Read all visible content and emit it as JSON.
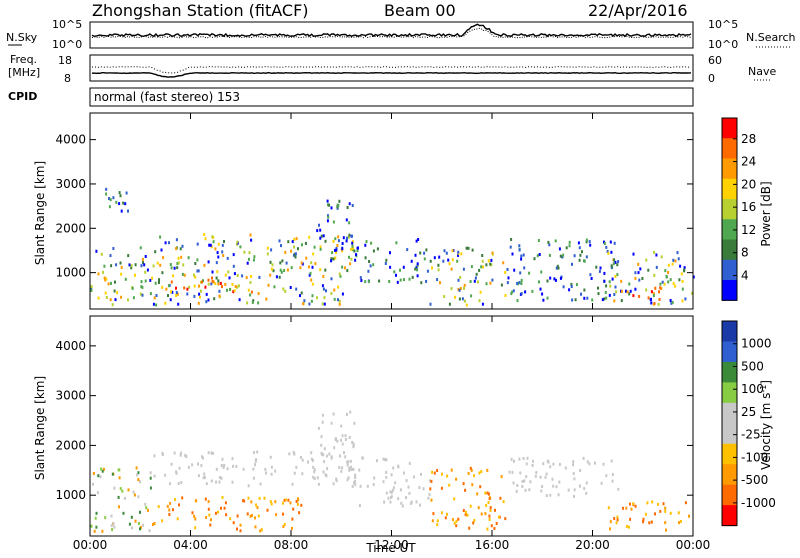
{
  "header": {
    "station": "Zhongshan Station (fitACF)",
    "beam": "Beam 00",
    "date": "22/Apr/2016"
  },
  "summary_panels": {
    "nsky_label": "N.Sky",
    "nsearch_label": "N.Search",
    "nsky_ticks": [
      "10^5",
      "10^0"
    ],
    "nsearch_ticks": [
      "10^5",
      "10^0"
    ],
    "freq_label_1": "Freq.",
    "freq_label_2": "[MHz]",
    "freq_ticks": [
      "18",
      "8"
    ],
    "nave_label": "Nave",
    "nave_ticks": [
      "60",
      "0"
    ],
    "cpid_label": "CPID",
    "cpid_text": "normal (fast stereo) 153"
  },
  "colors": {
    "power_scale": [
      "#0000ff",
      "#2f5fd0",
      "#3a7a3a",
      "#4fa84f",
      "#b8d030",
      "#ffd200",
      "#ff9a00",
      "#ff6a00",
      "#ff0000"
    ],
    "velocity_scale": [
      "#ff0000",
      "#ff6a00",
      "#ff9a00",
      "#ffc000",
      "#c8c8c8",
      "#c8c8c8",
      "#88cc44",
      "#3a8a3a",
      "#2f5fd0",
      "#1a3aa8"
    ],
    "ground_scatter": "#c8c8c8"
  },
  "chart_data": [
    {
      "type": "heatmap",
      "name": "power",
      "ylabel": "Slant Range [km]",
      "xlabel": "",
      "ylim": [
        180,
        4600
      ],
      "xlim": [
        0,
        24
      ],
      "x_ticks": [
        "00:00",
        "04:00",
        "08:00",
        "12:00",
        "16:00",
        "20:00",
        "00:00"
      ],
      "y_ticks": [
        1000,
        2000,
        3000,
        4000
      ],
      "colorbar": {
        "label": "Power [dB]",
        "ticks": [
          "28",
          "24",
          "20",
          "16",
          "12",
          "8",
          "4"
        ],
        "range": [
          0,
          30
        ]
      },
      "echo_regions": [
        {
          "t": [
            0.0,
            2.5
          ],
          "r": [
            300,
            1600
          ],
          "level": "mixed"
        },
        {
          "t": [
            0.3,
            1.5
          ],
          "r": [
            2400,
            3100
          ],
          "level": "low"
        },
        {
          "t": [
            2.5,
            10.5
          ],
          "r": [
            300,
            1900
          ],
          "level": "mixed"
        },
        {
          "t": [
            3.0,
            6.5
          ],
          "r": [
            500,
            1000
          ],
          "level": "high"
        },
        {
          "t": [
            9.0,
            10.5
          ],
          "r": [
            1200,
            2700
          ],
          "level": "low"
        },
        {
          "t": [
            10.5,
            13.5
          ],
          "r": [
            800,
            1800
          ],
          "level": "low"
        },
        {
          "t": [
            13.5,
            16.5
          ],
          "r": [
            300,
            1600
          ],
          "level": "mixed"
        },
        {
          "t": [
            16.5,
            21.0
          ],
          "r": [
            400,
            1800
          ],
          "level": "low"
        },
        {
          "t": [
            20.5,
            24.0
          ],
          "r": [
            300,
            1500
          ],
          "level": "mixed"
        },
        {
          "t": [
            21.5,
            23.0
          ],
          "r": [
            300,
            700
          ],
          "level": "high"
        }
      ]
    },
    {
      "type": "heatmap",
      "name": "velocity",
      "ylabel": "Slant Range [km]",
      "xlabel": "Time UT",
      "ylim": [
        180,
        4600
      ],
      "xlim": [
        0,
        24
      ],
      "x_ticks": [
        "00:00",
        "04:00",
        "08:00",
        "12:00",
        "16:00",
        "20:00",
        "00:00"
      ],
      "y_ticks": [
        1000,
        2000,
        3000,
        4000
      ],
      "colorbar": {
        "label": "Velocity [m s^-1]",
        "ticks": [
          "1000",
          "500",
          "100",
          "25",
          "-25",
          "-100",
          "-500",
          "-1000"
        ]
      },
      "echo_regions": [
        {
          "t": [
            0.0,
            2.5
          ],
          "r": [
            300,
            1600
          ],
          "level": "mixed"
        },
        {
          "t": [
            2.5,
            10.5
          ],
          "r": [
            1200,
            1900
          ],
          "level": "ground"
        },
        {
          "t": [
            2.5,
            8.5
          ],
          "r": [
            300,
            1000
          ],
          "level": "away"
        },
        {
          "t": [
            9.0,
            10.5
          ],
          "r": [
            1200,
            2700
          ],
          "level": "ground"
        },
        {
          "t": [
            10.5,
            13.5
          ],
          "r": [
            800,
            1800
          ],
          "level": "ground"
        },
        {
          "t": [
            13.5,
            16.5
          ],
          "r": [
            300,
            1600
          ],
          "level": "away"
        },
        {
          "t": [
            16.5,
            21.0
          ],
          "r": [
            1000,
            1800
          ],
          "level": "ground"
        },
        {
          "t": [
            20.5,
            24.0
          ],
          "r": [
            300,
            900
          ],
          "level": "away"
        }
      ]
    }
  ]
}
